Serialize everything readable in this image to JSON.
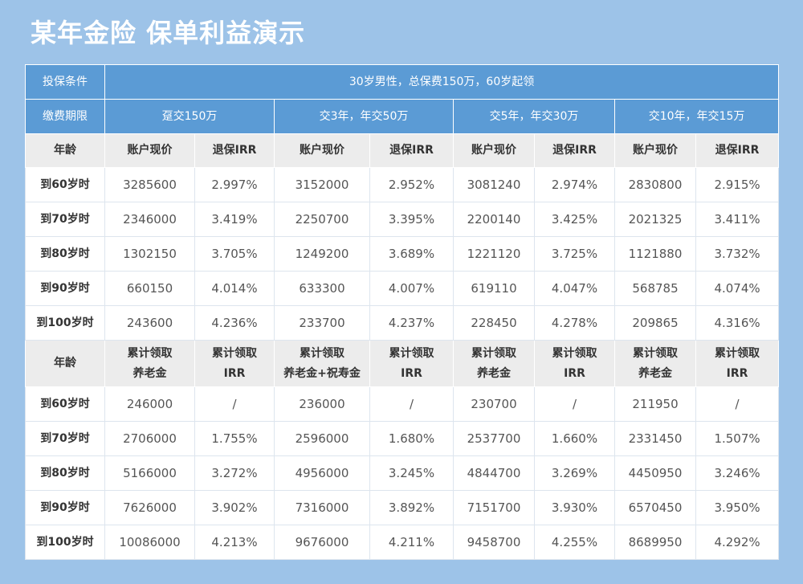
{
  "header": {
    "title": "某年金险 保单利益演示"
  },
  "table": {
    "condition_label": "投保条件",
    "condition": "30岁男性，总保费150万，60岁起领",
    "period_label": "缴费期限",
    "periods": [
      "趸交150万",
      "交3年，年交50万",
      "交5年，年交30万",
      "交10年，年交15万"
    ],
    "section1": {
      "header": [
        "年龄",
        "账户现价",
        "退保IRR",
        "账户现价",
        "退保IRR",
        "账户现价",
        "退保IRR",
        "账户现价",
        "退保IRR"
      ],
      "rows": [
        [
          "到60岁时",
          "3285600",
          "2.997%",
          "3152000",
          "2.952%",
          "3081240",
          "2.974%",
          "2830800",
          "2.915%"
        ],
        [
          "到70岁时",
          "2346000",
          "3.419%",
          "2250700",
          "3.395%",
          "2200140",
          "3.425%",
          "2021325",
          "3.411%"
        ],
        [
          "到80岁时",
          "1302150",
          "3.705%",
          "1249200",
          "3.689%",
          "1221120",
          "3.725%",
          "1121880",
          "3.732%"
        ],
        [
          "到90岁时",
          "660150",
          "4.014%",
          "633300",
          "4.007%",
          "619110",
          "4.047%",
          "568785",
          "4.074%"
        ],
        [
          "到100岁时",
          "243600",
          "4.236%",
          "233700",
          "4.237%",
          "228450",
          "4.278%",
          "209865",
          "4.316%"
        ]
      ]
    },
    "section2": {
      "header": [
        "年龄",
        "累计领取\n养老金",
        "累计领取\nIRR",
        "累计领取\n养老金+祝寿金",
        "累计领取\nIRR",
        "累计领取\n养老金",
        "累计领取\nIRR",
        "累计领取\n养老金",
        "累计领取\nIRR"
      ],
      "rows": [
        [
          "到60岁时",
          "246000",
          "/",
          "236000",
          "/",
          "230700",
          "/",
          "211950",
          "/"
        ],
        [
          "到70岁时",
          "2706000",
          "1.755%",
          "2596000",
          "1.680%",
          "2537700",
          "1.660%",
          "2331450",
          "1.507%"
        ],
        [
          "到80岁时",
          "5166000",
          "3.272%",
          "4956000",
          "3.245%",
          "4844700",
          "3.269%",
          "4450950",
          "3.246%"
        ],
        [
          "到90岁时",
          "7626000",
          "3.902%",
          "7316000",
          "3.892%",
          "7151700",
          "3.930%",
          "6570450",
          "3.950%"
        ],
        [
          "到100岁时",
          "10086000",
          "4.213%",
          "9676000",
          "4.211%",
          "9458700",
          "4.255%",
          "8689950",
          "4.292%"
        ]
      ]
    }
  }
}
